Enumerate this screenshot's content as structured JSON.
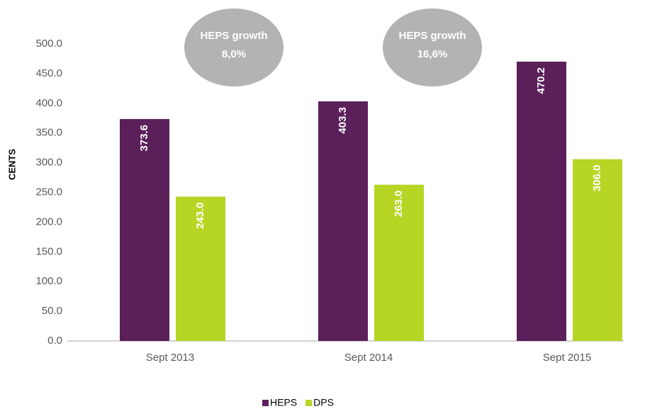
{
  "chart_data": {
    "type": "bar",
    "categories": [
      "Sept 2013",
      "Sept 2014",
      "Sept 2015"
    ],
    "series": [
      {
        "name": "HEPS",
        "color": "#5b1f5a",
        "values": [
          373.6,
          403.3,
          470.2
        ],
        "value_labels": [
          "373.6",
          "403.3",
          "470.2"
        ]
      },
      {
        "name": "DPS",
        "color": "#b5d624",
        "values": [
          243,
          263,
          306
        ],
        "value_labels": [
          "243.0",
          "263.0",
          "306.0"
        ]
      }
    ],
    "ylabel": "CENTS",
    "ylim": [
      0,
      500
    ],
    "yticks": [
      {
        "value": 0,
        "label": "0.0"
      },
      {
        "value": 50,
        "label": "50.0"
      },
      {
        "value": 100,
        "label": "100.0"
      },
      {
        "value": 150,
        "label": "150.0"
      },
      {
        "value": 200,
        "label": "200.0"
      },
      {
        "value": 250,
        "label": "250.0"
      },
      {
        "value": 300,
        "label": "300.0"
      },
      {
        "value": 350,
        "label": "350.0"
      },
      {
        "value": 400,
        "label": "400.0"
      },
      {
        "value": 450,
        "label": "450.0"
      },
      {
        "value": 500,
        "label": "500.0"
      }
    ],
    "annotations": [
      {
        "title": "HEPS growth",
        "label": "8,0%"
      },
      {
        "title": "HEPS growth",
        "label": "16,6%"
      }
    ],
    "grid": false,
    "legend": "bottom"
  }
}
